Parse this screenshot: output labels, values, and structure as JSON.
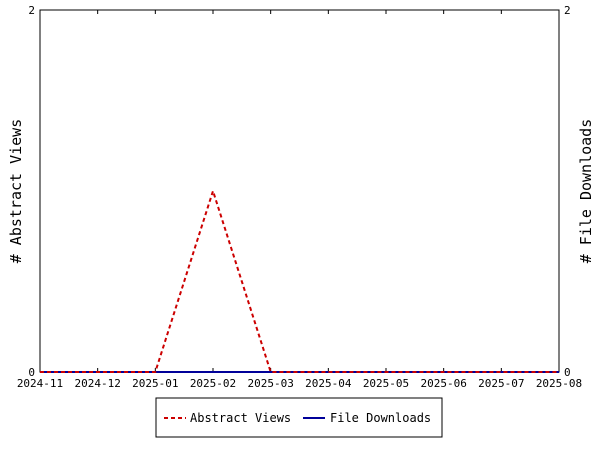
{
  "chart_data": {
    "type": "line",
    "x": [
      "2024-11",
      "2024-12",
      "2025-01",
      "2025-02",
      "2025-03",
      "2025-04",
      "2025-05",
      "2025-06",
      "2025-07",
      "2025-08"
    ],
    "y_left_label": "# Abstract Views",
    "y_right_label": "# File Downloads",
    "y_left_ticks": [
      "0",
      "2"
    ],
    "y_right_ticks": [
      "0",
      "2"
    ],
    "ylim_left": [
      0,
      2
    ],
    "ylim_right": [
      0,
      2
    ],
    "series": [
      {
        "name": "Abstract Views",
        "axis": "left",
        "color": "#cc0000",
        "style": "dashed",
        "points": [
          {
            "x": "2024-11",
            "y": 0
          },
          {
            "x": "2024-12",
            "y": 0
          },
          {
            "x": "2025-01",
            "y": 0
          },
          {
            "x": "2025-02",
            "y": 1
          },
          {
            "x": "2025-03",
            "y": 0
          },
          {
            "x": "2025-04",
            "y": 0
          },
          {
            "x": "2025-05",
            "y": 0
          },
          {
            "x": "2025-06",
            "y": 0
          },
          {
            "x": "2025-07",
            "y": 0
          },
          {
            "x": "2025-08",
            "y": 0
          }
        ]
      },
      {
        "name": "File Downloads",
        "axis": "right",
        "color": "#000099",
        "style": "solid",
        "points": [
          {
            "x": "2024-11",
            "y": 0
          },
          {
            "x": "2024-12",
            "y": 0
          },
          {
            "x": "2025-01",
            "y": 0
          },
          {
            "x": "2025-02",
            "y": 0
          },
          {
            "x": "2025-03",
            "y": 0
          },
          {
            "x": "2025-04",
            "y": 0
          },
          {
            "x": "2025-05",
            "y": 0
          },
          {
            "x": "2025-06",
            "y": 0
          },
          {
            "x": "2025-07",
            "y": 0
          },
          {
            "x": "2025-08",
            "y": 0
          }
        ]
      }
    ],
    "grid": false,
    "legend_position": "bottom"
  }
}
